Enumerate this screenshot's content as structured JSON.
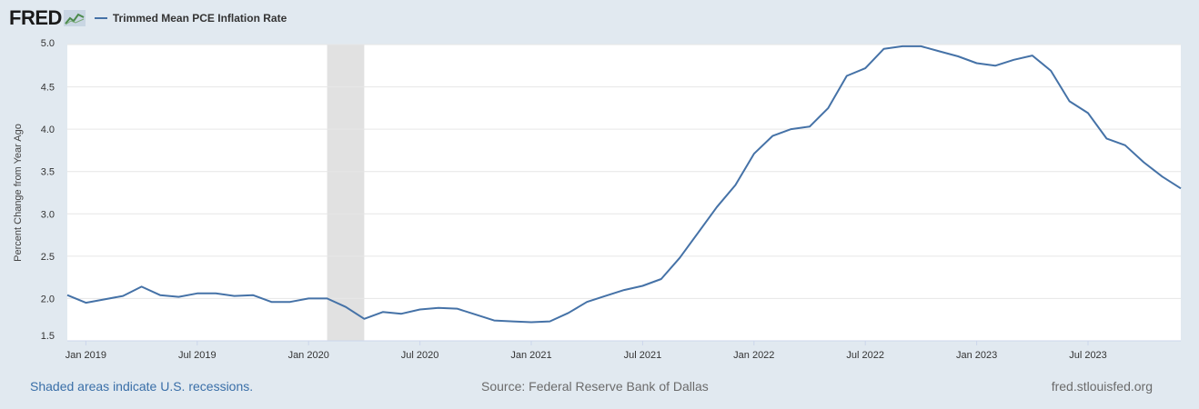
{
  "header": {
    "logo_text": "FRED",
    "legend_label": "Trimmed Mean PCE Inflation Rate",
    "legend_color": "#4572a7"
  },
  "footer": {
    "recession_note": "Shaded areas indicate U.S. recessions.",
    "source": "Source: Federal Reserve Bank of Dallas",
    "site": "fred.stlouisfed.org"
  },
  "chart_data": {
    "type": "line",
    "title": "",
    "xlabel": "",
    "ylabel": "Percent Change from Year Ago",
    "ylim": [
      1.5,
      5.0
    ],
    "yticks": [
      "1.5",
      "2.0",
      "2.5",
      "3.0",
      "3.5",
      "4.0",
      "4.5",
      "5.0"
    ],
    "xticks": [
      "Jan 2019",
      "Jul 2019",
      "Jan 2020",
      "Jul 2020",
      "Jan 2021",
      "Jul 2021",
      "Jan 2022",
      "Jul 2022",
      "Jan 2023",
      "Jul 2023"
    ],
    "grid": true,
    "recession_shading": {
      "start": "2020-02",
      "end": "2020-04",
      "color": "#e1e1e1"
    },
    "series": [
      {
        "color": "#4572a7",
        "x": [
          "2018-12",
          "2019-01",
          "2019-02",
          "2019-03",
          "2019-04",
          "2019-05",
          "2019-06",
          "2019-07",
          "2019-08",
          "2019-09",
          "2019-10",
          "2019-11",
          "2019-12",
          "2020-01",
          "2020-02",
          "2020-03",
          "2020-04",
          "2020-05",
          "2020-06",
          "2020-07",
          "2020-08",
          "2020-09",
          "2020-10",
          "2020-11",
          "2020-12",
          "2021-01",
          "2021-02",
          "2021-03",
          "2021-04",
          "2021-05",
          "2021-06",
          "2021-07",
          "2021-08",
          "2021-09",
          "2021-10",
          "2021-11",
          "2021-12",
          "2022-01",
          "2022-02",
          "2022-03",
          "2022-04",
          "2022-05",
          "2022-06",
          "2022-07",
          "2022-08",
          "2022-09",
          "2022-10",
          "2022-11",
          "2022-12",
          "2023-01",
          "2023-02",
          "2023-03",
          "2023-04",
          "2023-05",
          "2023-06",
          "2023-07",
          "2023-08",
          "2023-09",
          "2023-10",
          "2023-11",
          "2023-12"
        ],
        "values": [
          2.04,
          1.95,
          1.99,
          2.03,
          2.14,
          2.04,
          2.02,
          2.06,
          2.06,
          2.03,
          2.04,
          1.96,
          1.96,
          2.0,
          2.0,
          1.9,
          1.76,
          1.84,
          1.82,
          1.87,
          1.89,
          1.88,
          1.81,
          1.74,
          1.73,
          1.72,
          1.73,
          1.83,
          1.96,
          2.03,
          2.1,
          2.15,
          2.23,
          2.48,
          2.78,
          3.08,
          3.34,
          3.71,
          3.92,
          4.0,
          4.03,
          4.25,
          4.63,
          4.72,
          4.95,
          4.98,
          4.98,
          4.92,
          4.86,
          4.78,
          4.75,
          4.82,
          4.87,
          4.69,
          4.33,
          4.19,
          3.89,
          3.81,
          3.61,
          3.44,
          3.3
        ]
      }
    ]
  }
}
